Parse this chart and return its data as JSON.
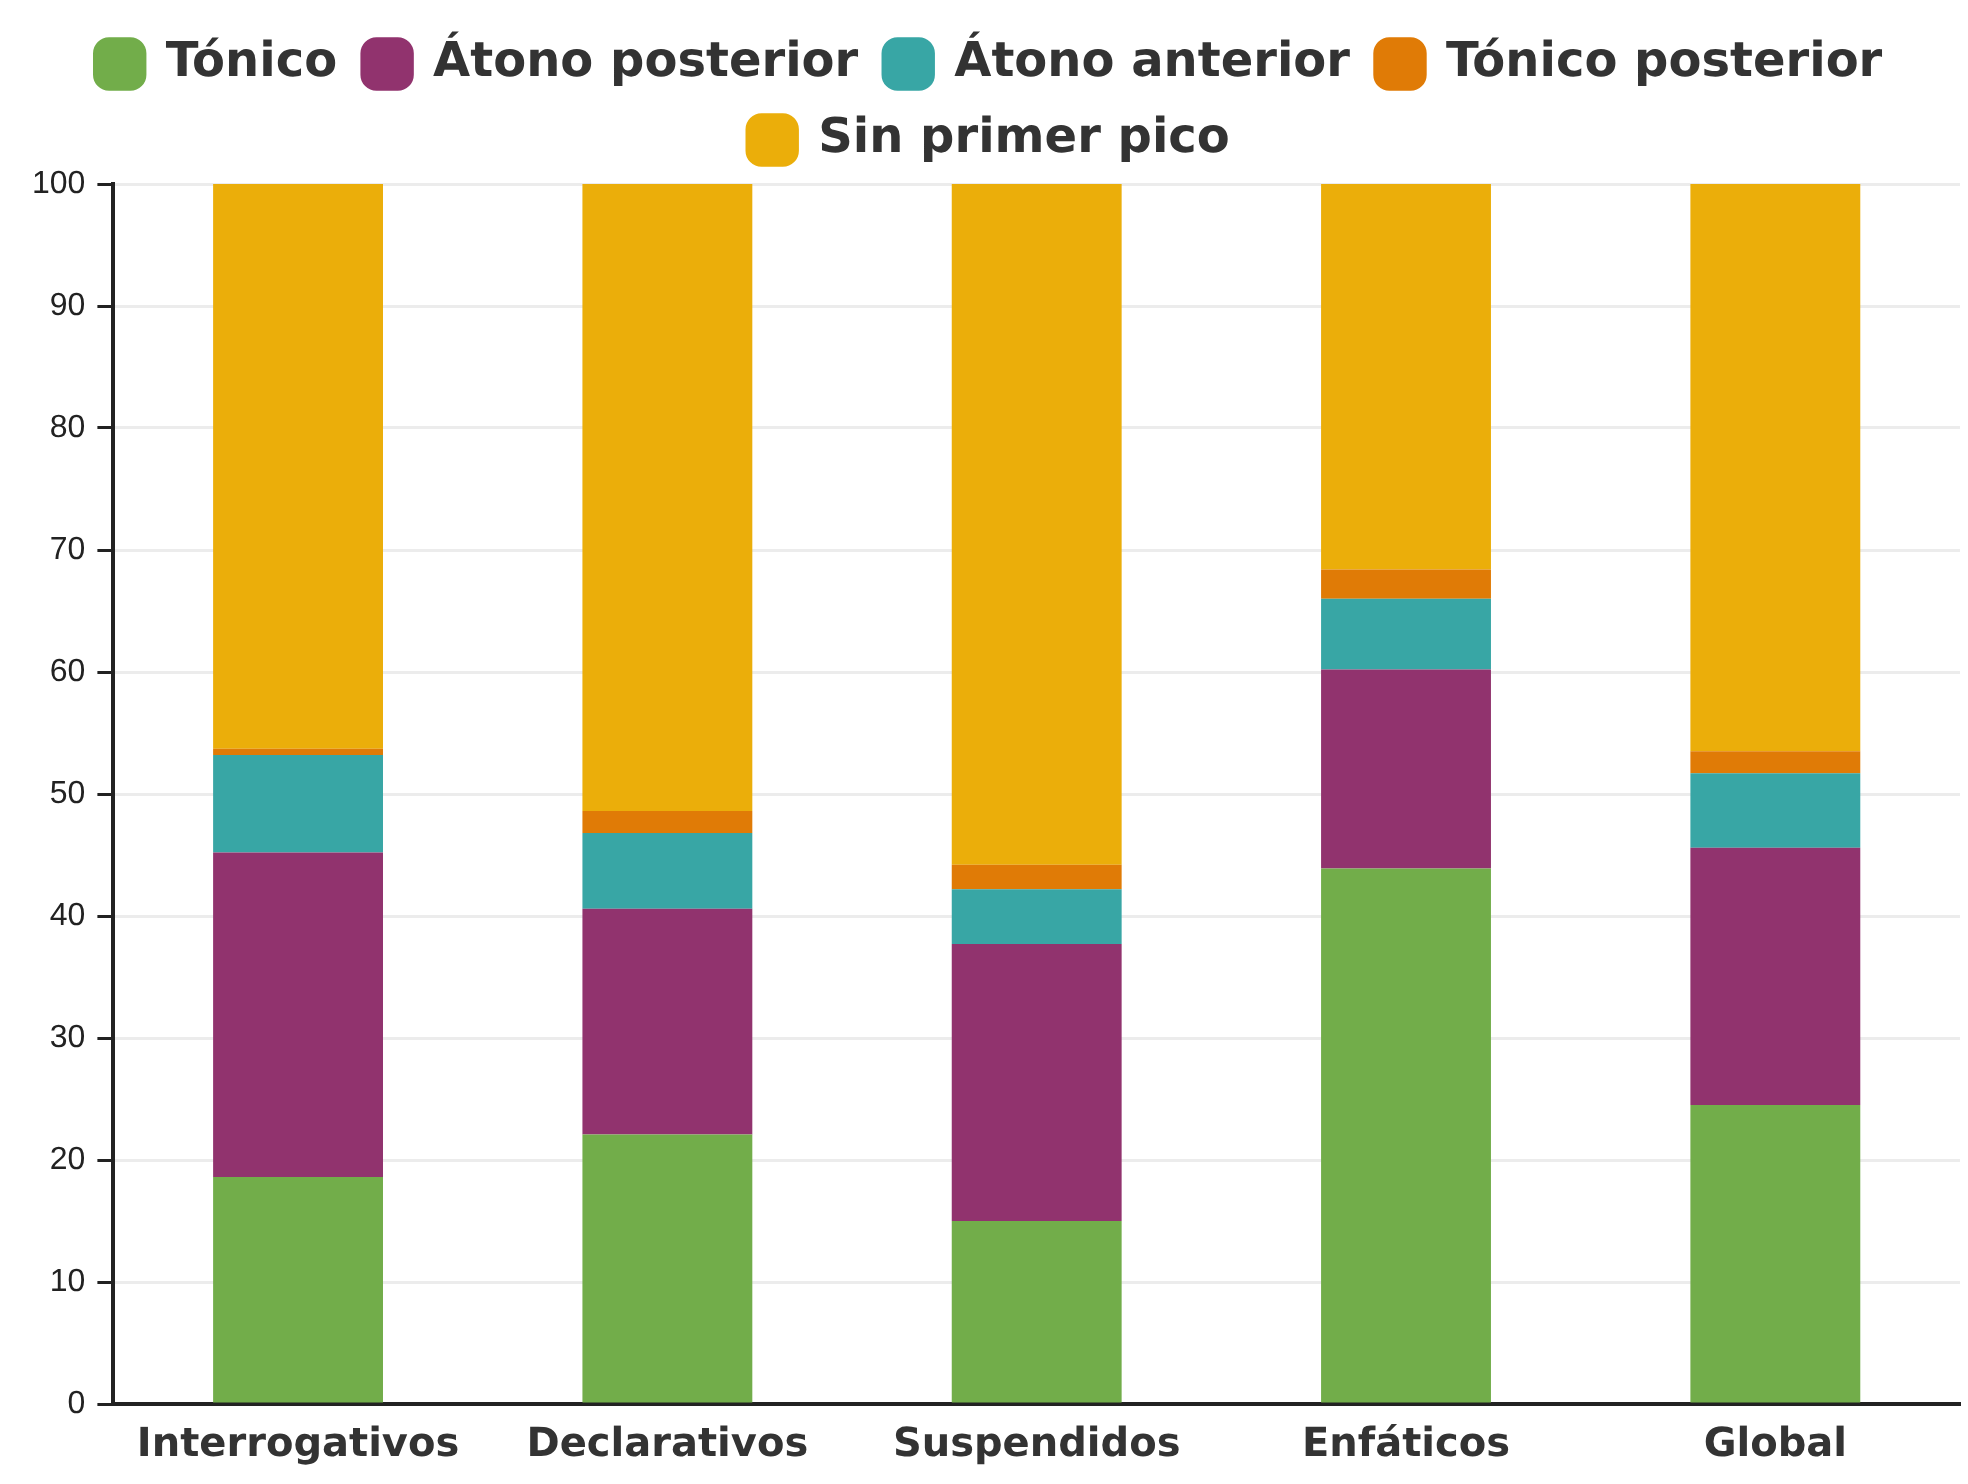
{
  "chart_data": {
    "type": "bar",
    "stacked": true,
    "categories": [
      "Interrogativos",
      "Declarativos",
      "Suspendidos",
      "Enfáticos",
      "Global"
    ],
    "series": [
      {
        "name": "Tónico",
        "color": "#72ad4a",
        "values": [
          18.6,
          22.1,
          15.0,
          43.9,
          24.5
        ]
      },
      {
        "name": "Átono posterior",
        "color": "#91336e",
        "values": [
          26.6,
          18.5,
          22.7,
          16.3,
          21.1
        ]
      },
      {
        "name": "Átono anterior",
        "color": "#38a6a5",
        "values": [
          8.0,
          6.2,
          4.5,
          5.8,
          6.1
        ]
      },
      {
        "name": "Tónico posterior",
        "color": "#e07b06",
        "values": [
          0.5,
          1.8,
          2.0,
          2.4,
          1.8
        ]
      },
      {
        "name": "Sin primer pico",
        "color": "#ebae0a",
        "values": [
          46.3,
          51.4,
          55.8,
          31.6,
          46.5
        ]
      }
    ],
    "ylim": [
      0,
      100
    ],
    "yticks": [
      0,
      10,
      20,
      30,
      40,
      50,
      60,
      70,
      80,
      90,
      100
    ],
    "grid": "y",
    "legend": "top"
  }
}
